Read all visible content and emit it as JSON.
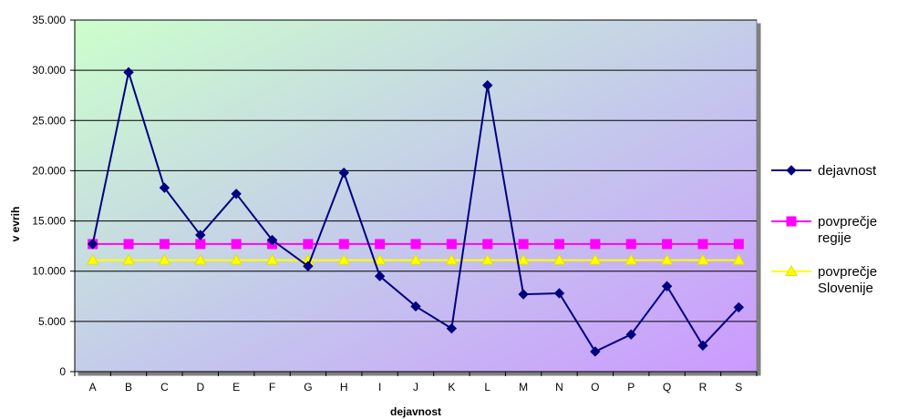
{
  "chart_data": {
    "type": "line",
    "xlabel": "dejavnost",
    "ylabel": "v evrih",
    "ylim": [
      0,
      35000
    ],
    "yticks": [
      0,
      5000,
      10000,
      15000,
      20000,
      25000,
      30000,
      35000
    ],
    "ytick_labels": [
      "0",
      "5.000",
      "10.000",
      "15.000",
      "20.000",
      "25.000",
      "30.000",
      "35.000"
    ],
    "categories": [
      "A",
      "B",
      "C",
      "D",
      "E",
      "F",
      "G",
      "H",
      "I",
      "J",
      "K",
      "L",
      "M",
      "N",
      "O",
      "P",
      "Q",
      "R",
      "S"
    ],
    "grid": "horizontal",
    "legend_position": "right",
    "series": [
      {
        "name": "dejavnost",
        "color": "#000080",
        "marker": "diamond",
        "values": [
          12700,
          29800,
          18300,
          13600,
          17700,
          13100,
          10500,
          19800,
          9500,
          6500,
          4300,
          28500,
          7700,
          7800,
          2000,
          3700,
          8500,
          2600,
          6400
        ]
      },
      {
        "name": "povprečje regije",
        "color": "#ff00ff",
        "marker": "square",
        "values": [
          12700,
          12700,
          12700,
          12700,
          12700,
          12700,
          12700,
          12700,
          12700,
          12700,
          12700,
          12700,
          12700,
          12700,
          12700,
          12700,
          12700,
          12700,
          12700
        ]
      },
      {
        "name": "povprečje Slovenije",
        "color": "#ffff00",
        "marker": "triangle",
        "values": [
          11100,
          11100,
          11100,
          11100,
          11100,
          11100,
          11100,
          11100,
          11100,
          11100,
          11100,
          11100,
          11100,
          11100,
          11100,
          11100,
          11100,
          11100,
          11100
        ]
      }
    ],
    "legend": [
      {
        "lines": [
          "dejavnost"
        ]
      },
      {
        "lines": [
          "povprečje",
          "regije"
        ]
      },
      {
        "lines": [
          "povprečje",
          "Slovenije"
        ]
      }
    ]
  }
}
